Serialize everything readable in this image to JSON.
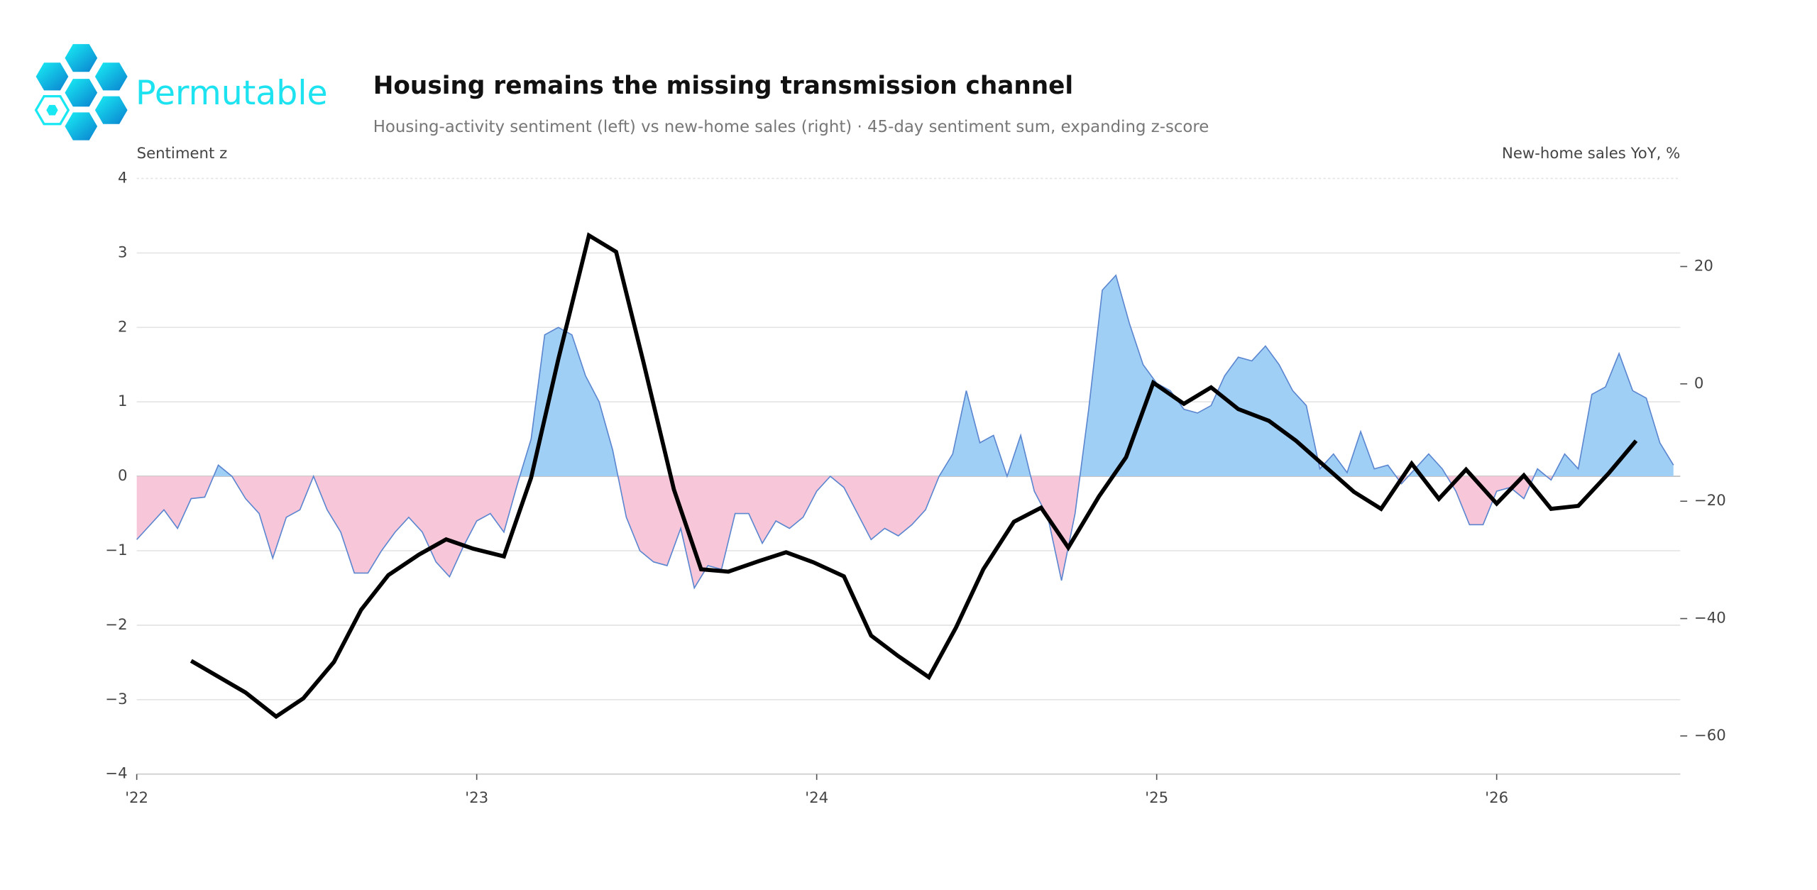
{
  "logo": "Permutable",
  "chart_data": {
    "type": "combo",
    "title": "Housing remains the missing transmission channel",
    "subtitle": "Housing-activity sentiment (left) vs new-home sales (right) · 45-day sentiment sum, expanding z-score",
    "ylabel": "Sentiment z",
    "y2label": "New-home sales YoY, %",
    "xlim": [
      2022,
      2026.54
    ],
    "xticks": [
      {
        "value": 2022,
        "label": "'22"
      },
      {
        "value": 2023,
        "label": "'23"
      },
      {
        "value": 2024,
        "label": "'24"
      },
      {
        "value": 2025,
        "label": "'25"
      },
      {
        "value": 2026,
        "label": "'26"
      }
    ],
    "ylim": [
      -4,
      4
    ],
    "yticks": [
      {
        "value": -4,
        "label": "−4"
      },
      {
        "value": -3,
        "label": "−3"
      },
      {
        "value": -2,
        "label": "−2"
      },
      {
        "value": -1,
        "label": "−1"
      },
      0,
      1,
      2,
      3,
      4
    ],
    "y2lim": [
      -66.5,
      35
    ],
    "y2ticks": [
      {
        "value": -60,
        "label": "−60"
      },
      {
        "value": -40,
        "label": "−40"
      },
      {
        "value": -20,
        "label": "−20"
      },
      0,
      20
    ],
    "grid": true,
    "series": [
      {
        "type": "area",
        "axis": "y",
        "color": "#5b86d0",
        "positive_color": "#a0cff5",
        "negative_color": "#f7c6d8",
        "x": [
          2022,
          2022.04,
          2022.08,
          2022.12,
          2022.16,
          2022.2,
          2022.24,
          2022.28,
          2022.32,
          2022.36,
          2022.4,
          2022.44,
          2022.48,
          2022.52,
          2022.56,
          2022.6,
          2022.64,
          2022.68,
          2022.72,
          2022.76,
          2022.8,
          2022.84,
          2022.88,
          2022.92,
          2022.96,
          2023,
          2023.04,
          2023.08,
          2023.12,
          2023.16,
          2023.2,
          2023.24,
          2023.28,
          2023.32,
          2023.36,
          2023.4,
          2023.44,
          2023.48,
          2023.52,
          2023.56,
          2023.6,
          2023.64,
          2023.68,
          2023.72,
          2023.76,
          2023.8,
          2023.84,
          2023.88,
          2023.92,
          2023.96,
          2024,
          2024.04,
          2024.08,
          2024.12,
          2024.16,
          2024.2,
          2024.24,
          2024.28,
          2024.32,
          2024.36,
          2024.4,
          2024.44,
          2024.48,
          2024.52,
          2024.56,
          2024.6,
          2024.64,
          2024.68,
          2024.72,
          2024.76,
          2024.8,
          2024.84,
          2024.88,
          2024.92,
          2024.96,
          2025,
          2025.04,
          2025.08,
          2025.12,
          2025.16,
          2025.2,
          2025.24,
          2025.28,
          2025.32,
          2025.36,
          2025.4,
          2025.44,
          2025.48,
          2025.52,
          2025.56,
          2025.6,
          2025.64,
          2025.68,
          2025.72,
          2025.76,
          2025.8,
          2025.84,
          2025.88,
          2025.92,
          2025.96,
          2026,
          2026.04,
          2026.08,
          2026.12,
          2026.16,
          2026.2,
          2026.24,
          2026.28,
          2026.32,
          2026.36,
          2026.4,
          2026.44,
          2026.48,
          2026.52
        ],
        "values": [
          -0.85,
          -0.65,
          -0.45,
          -0.7,
          -0.3,
          -0.28,
          0.15,
          0.0,
          -0.3,
          -0.5,
          -1.1,
          -0.55,
          -0.45,
          0.0,
          -0.45,
          -0.75,
          -1.3,
          -1.3,
          -1.0,
          -0.75,
          -0.55,
          -0.75,
          -1.15,
          -1.35,
          -0.95,
          -0.6,
          -0.5,
          -0.75,
          -0.1,
          0.5,
          1.9,
          2.0,
          1.9,
          1.35,
          1.0,
          0.35,
          -0.55,
          -1.0,
          -1.15,
          -1.2,
          -0.7,
          -1.5,
          -1.2,
          -1.25,
          -0.5,
          -0.5,
          -0.9,
          -0.6,
          -0.7,
          -0.55,
          -0.2,
          0.0,
          -0.15,
          -0.5,
          -0.85,
          -0.7,
          -0.8,
          -0.65,
          -0.45,
          0.0,
          0.3,
          1.15,
          0.45,
          0.55,
          0.0,
          0.55,
          -0.2,
          -0.55,
          -1.4,
          -0.5,
          0.9,
          2.5,
          2.7,
          2.05,
          1.5,
          1.25,
          1.15,
          0.9,
          0.85,
          0.95,
          1.35,
          1.6,
          1.55,
          1.75,
          1.5,
          1.15,
          0.95,
          0.1,
          0.3,
          0.05,
          0.6,
          0.1,
          0.15,
          -0.1,
          0.1,
          0.3,
          0.1,
          -0.2,
          -0.65,
          -0.65,
          -0.2,
          -0.15,
          -0.3,
          0.1,
          -0.05,
          0.3,
          0.1,
          1.1,
          1.2,
          1.65,
          1.15,
          1.05,
          0.45,
          0.15
        ]
      },
      {
        "type": "line",
        "axis": "y2",
        "color": "#000000",
        "x": [
          2022.16,
          2022.32,
          2022.41,
          2022.49,
          2022.58,
          2022.66,
          2022.74,
          2022.83,
          2022.91,
          2022.99,
          2023.08,
          2023.16,
          2023.24,
          2023.33,
          2023.41,
          2023.49,
          2023.58,
          2023.66,
          2023.74,
          2023.83,
          2023.91,
          2023.99,
          2024.08,
          2024.16,
          2024.24,
          2024.33,
          2024.41,
          2024.49,
          2024.58,
          2024.66,
          2024.74,
          2024.83,
          2024.91,
          2024.99,
          2025.08,
          2025.16,
          2025.24,
          2025.33,
          2025.41,
          2025.49,
          2025.58,
          2025.66,
          2025.75,
          2025.83,
          2025.91,
          2026.0,
          2026.08,
          2026.16,
          2026.24,
          2026.33,
          2026.41
        ],
        "values": [
          -47.2,
          -52.6,
          -56.7,
          -53.6,
          -47.4,
          -38.5,
          -32.6,
          -29.1,
          -26.5,
          -28.1,
          -29.4,
          -16.0,
          4.2,
          25.3,
          22.5,
          3.8,
          -18.0,
          -31.6,
          -32.0,
          -30.2,
          -28.7,
          -30.4,
          -32.8,
          -42.9,
          -46.4,
          -50.0,
          -41.5,
          -31.6,
          -23.5,
          -21.1,
          -27.9,
          -19.2,
          -12.5,
          0.2,
          -3.4,
          -0.6,
          -4.3,
          -6.3,
          -9.7,
          -13.8,
          -18.4,
          -21.3,
          -13.6,
          -19.6,
          -14.6,
          -20.4,
          -15.6,
          -21.3,
          -20.8,
          -15.2,
          -9.7
        ]
      }
    ]
  }
}
